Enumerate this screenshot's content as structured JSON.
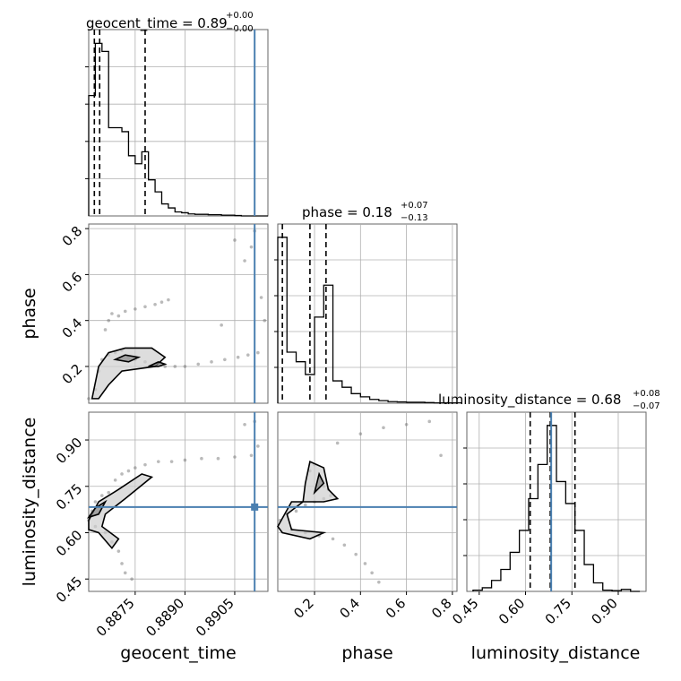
{
  "chart_data": {
    "type": "corner",
    "parameters": [
      "geocent_time",
      "phase",
      "luminosity_distance"
    ],
    "axis_labels": {
      "geocent_time": "geocent_time",
      "phase": "phase",
      "luminosity_distance": "luminosity_distance"
    },
    "ranges": {
      "geocent_time": [
        0.8861,
        0.8915
      ],
      "phase": [
        0.04,
        0.82
      ],
      "luminosity_distance": [
        0.41,
        0.99
      ]
    },
    "ticks": {
      "geocent_time": [
        {
          "v": 0.8875,
          "label": "0.8875"
        },
        {
          "v": 0.889,
          "label": "0.8890"
        },
        {
          "v": 0.8905,
          "label": "0.8905"
        }
      ],
      "phase": [
        {
          "v": 0.2,
          "label": "0.2"
        },
        {
          "v": 0.4,
          "label": "0.4"
        },
        {
          "v": 0.6,
          "label": "0.6"
        },
        {
          "v": 0.8,
          "label": "0.8"
        }
      ],
      "luminosity_distance": [
        {
          "v": 0.45,
          "label": "0.45"
        },
        {
          "v": 0.6,
          "label": "0.60"
        },
        {
          "v": 0.75,
          "label": "0.75"
        },
        {
          "v": 0.9,
          "label": "0.90"
        }
      ]
    },
    "injection": {
      "geocent_time": 0.8911,
      "luminosity_distance": 0.683
    },
    "titles": {
      "geocent_time": {
        "main": "geocent_time = 0.89",
        "upper": "+0.00",
        "lower": "−0.00"
      },
      "phase": {
        "main": "phase = 0.18",
        "upper": "+0.07",
        "lower": "−0.13"
      },
      "luminosity_distance": {
        "main": "luminosity_distance = 0.68",
        "upper": "+0.08",
        "lower": "−0.07"
      }
    },
    "quantiles": {
      "geocent_time": [
        0.88627,
        0.88643,
        0.8878
      ],
      "phase": [
        0.06,
        0.18,
        0.25
      ],
      "luminosity_distance": [
        0.615,
        0.68,
        0.76
      ]
    },
    "histograms": {
      "geocent_time": {
        "edges": [
          0.8861,
          0.8863,
          0.8865,
          0.8867,
          0.8869,
          0.8871,
          0.8873,
          0.8875,
          0.8877,
          0.8879,
          0.8881,
          0.8883,
          0.8885,
          0.8887,
          0.8889,
          0.8891,
          0.8893,
          0.8895,
          0.8897,
          0.8899,
          0.8901,
          0.8903,
          0.8905,
          0.8907,
          0.8909,
          0.8911,
          0.8913,
          0.8915
        ],
        "counts": [
          3.0,
          4.3,
          4.1,
          2.2,
          2.2,
          2.1,
          1.5,
          1.3,
          1.6,
          0.9,
          0.6,
          0.3,
          0.2,
          0.1,
          0.08,
          0.05,
          0.04,
          0.04,
          0.03,
          0.03,
          0.02,
          0.02,
          0.01,
          0,
          0,
          0,
          0
        ]
      },
      "phase": {
        "edges": [
          0.04,
          0.08,
          0.12,
          0.16,
          0.2,
          0.24,
          0.28,
          0.32,
          0.36,
          0.4,
          0.44,
          0.48,
          0.52,
          0.56,
          0.6,
          0.64,
          0.68,
          0.72,
          0.76,
          0.8,
          0.84
        ],
        "counts": [
          5.2,
          1.6,
          1.3,
          0.9,
          2.7,
          3.7,
          0.7,
          0.5,
          0.3,
          0.2,
          0.12,
          0.08,
          0.05,
          0.04,
          0.03,
          0.03,
          0.02,
          0.01,
          0.01,
          0.01
        ]
      },
      "luminosity_distance": {
        "edges": [
          0.43,
          0.46,
          0.49,
          0.52,
          0.55,
          0.58,
          0.61,
          0.64,
          0.67,
          0.7,
          0.73,
          0.76,
          0.79,
          0.82,
          0.85,
          0.88,
          0.91,
          0.94,
          0.97
        ],
        "counts": [
          0.05,
          0.15,
          0.45,
          0.9,
          1.6,
          2.5,
          3.8,
          5.2,
          6.8,
          4.5,
          3.6,
          2.5,
          1.1,
          0.35,
          0.05,
          0.03,
          0.08,
          0
        ]
      }
    },
    "scatter_2d": {
      "phase_vs_geocent_time": [
        [
          0.8861,
          0.06
        ],
        [
          0.8863,
          0.1
        ],
        [
          0.8864,
          0.18
        ],
        [
          0.8865,
          0.23
        ],
        [
          0.8867,
          0.25
        ],
        [
          0.8869,
          0.26
        ],
        [
          0.8871,
          0.27
        ],
        [
          0.8873,
          0.24
        ],
        [
          0.8875,
          0.23
        ],
        [
          0.8878,
          0.22
        ],
        [
          0.8881,
          0.21
        ],
        [
          0.8884,
          0.2
        ],
        [
          0.8887,
          0.2
        ],
        [
          0.889,
          0.2
        ],
        [
          0.8894,
          0.21
        ],
        [
          0.8898,
          0.22
        ],
        [
          0.8902,
          0.23
        ],
        [
          0.8906,
          0.24
        ],
        [
          0.8909,
          0.25
        ],
        [
          0.8912,
          0.26
        ],
        [
          0.8866,
          0.36
        ],
        [
          0.8867,
          0.4
        ],
        [
          0.8868,
          0.43
        ],
        [
          0.887,
          0.42
        ],
        [
          0.8872,
          0.44
        ],
        [
          0.8875,
          0.45
        ],
        [
          0.8878,
          0.46
        ],
        [
          0.8881,
          0.47
        ],
        [
          0.8883,
          0.48
        ],
        [
          0.8885,
          0.49
        ],
        [
          0.8908,
          0.66
        ],
        [
          0.891,
          0.72
        ],
        [
          0.8911,
          0.79
        ],
        [
          0.8913,
          0.5
        ],
        [
          0.8914,
          0.4
        ],
        [
          0.8901,
          0.38
        ],
        [
          0.8905,
          0.75
        ]
      ],
      "luminosity_distance_vs_geocent_time": [
        [
          0.8861,
          0.64
        ],
        [
          0.8862,
          0.67
        ],
        [
          0.8863,
          0.7
        ],
        [
          0.8865,
          0.72
        ],
        [
          0.8867,
          0.73
        ],
        [
          0.8869,
          0.77
        ],
        [
          0.8871,
          0.79
        ],
        [
          0.8873,
          0.8
        ],
        [
          0.8875,
          0.81
        ],
        [
          0.8878,
          0.82
        ],
        [
          0.8882,
          0.83
        ],
        [
          0.8886,
          0.83
        ],
        [
          0.889,
          0.835
        ],
        [
          0.8895,
          0.84
        ],
        [
          0.89,
          0.84
        ],
        [
          0.8905,
          0.845
        ],
        [
          0.891,
          0.85
        ],
        [
          0.8863,
          0.62
        ],
        [
          0.8866,
          0.6
        ],
        [
          0.8868,
          0.57
        ],
        [
          0.887,
          0.54
        ],
        [
          0.8871,
          0.5
        ],
        [
          0.8872,
          0.47
        ],
        [
          0.8874,
          0.45
        ],
        [
          0.8908,
          0.95
        ],
        [
          0.8911,
          0.96
        ],
        [
          0.8912,
          0.88
        ]
      ],
      "luminosity_distance_vs_phase": [
        [
          0.05,
          0.64
        ],
        [
          0.08,
          0.66
        ],
        [
          0.12,
          0.67
        ],
        [
          0.16,
          0.69
        ],
        [
          0.2,
          0.7
        ],
        [
          0.24,
          0.71
        ],
        [
          0.27,
          0.72
        ],
        [
          0.18,
          0.8
        ],
        [
          0.2,
          0.82
        ],
        [
          0.22,
          0.78
        ],
        [
          0.24,
          0.75
        ],
        [
          0.26,
          0.74
        ],
        [
          0.1,
          0.61
        ],
        [
          0.16,
          0.6
        ],
        [
          0.22,
          0.59
        ],
        [
          0.28,
          0.58
        ],
        [
          0.33,
          0.56
        ],
        [
          0.38,
          0.53
        ],
        [
          0.42,
          0.5
        ],
        [
          0.45,
          0.47
        ],
        [
          0.48,
          0.44
        ],
        [
          0.3,
          0.89
        ],
        [
          0.4,
          0.92
        ],
        [
          0.5,
          0.94
        ],
        [
          0.6,
          0.95
        ],
        [
          0.7,
          0.96
        ],
        [
          0.75,
          0.85
        ]
      ]
    },
    "contours": {
      "phase_vs_geocent_time": [
        [
          [
            0.8862,
            0.06
          ],
          [
            0.8864,
            0.2
          ],
          [
            0.8867,
            0.26
          ],
          [
            0.8872,
            0.28
          ],
          [
            0.888,
            0.28
          ],
          [
            0.8884,
            0.24
          ],
          [
            0.8881,
            0.2
          ],
          [
            0.8871,
            0.18
          ],
          [
            0.8867,
            0.12
          ],
          [
            0.8864,
            0.06
          ]
        ],
        [
          [
            0.8869,
            0.23
          ],
          [
            0.8872,
            0.25
          ],
          [
            0.8876,
            0.24
          ],
          [
            0.8873,
            0.22
          ]
        ],
        [
          [
            0.8879,
            0.2
          ],
          [
            0.8882,
            0.22
          ],
          [
            0.8884,
            0.21
          ],
          [
            0.8882,
            0.2
          ]
        ]
      ],
      "luminosity_distance_vs_geocent_time": [
        [
          [
            0.8861,
            0.64
          ],
          [
            0.8864,
            0.7
          ],
          [
            0.887,
            0.74
          ],
          [
            0.8877,
            0.79
          ],
          [
            0.888,
            0.78
          ],
          [
            0.8872,
            0.71
          ],
          [
            0.8866,
            0.66
          ],
          [
            0.8865,
            0.62
          ],
          [
            0.887,
            0.58
          ],
          [
            0.8868,
            0.55
          ],
          [
            0.8864,
            0.6
          ],
          [
            0.8861,
            0.61
          ]
        ],
        [
          [
            0.8861,
            0.65
          ],
          [
            0.8863,
            0.68
          ],
          [
            0.8866,
            0.7
          ],
          [
            0.8864,
            0.66
          ]
        ]
      ],
      "luminosity_distance_vs_phase": [
        [
          [
            0.04,
            0.62
          ],
          [
            0.1,
            0.7
          ],
          [
            0.24,
            0.7
          ],
          [
            0.3,
            0.71
          ],
          [
            0.26,
            0.74
          ],
          [
            0.24,
            0.81
          ],
          [
            0.18,
            0.83
          ],
          [
            0.16,
            0.76
          ],
          [
            0.15,
            0.7
          ],
          [
            0.08,
            0.66
          ],
          [
            0.1,
            0.61
          ],
          [
            0.24,
            0.6
          ],
          [
            0.18,
            0.58
          ],
          [
            0.06,
            0.6
          ]
        ],
        [
          [
            0.2,
            0.73
          ],
          [
            0.22,
            0.79
          ],
          [
            0.24,
            0.76
          ]
        ]
      ]
    }
  }
}
